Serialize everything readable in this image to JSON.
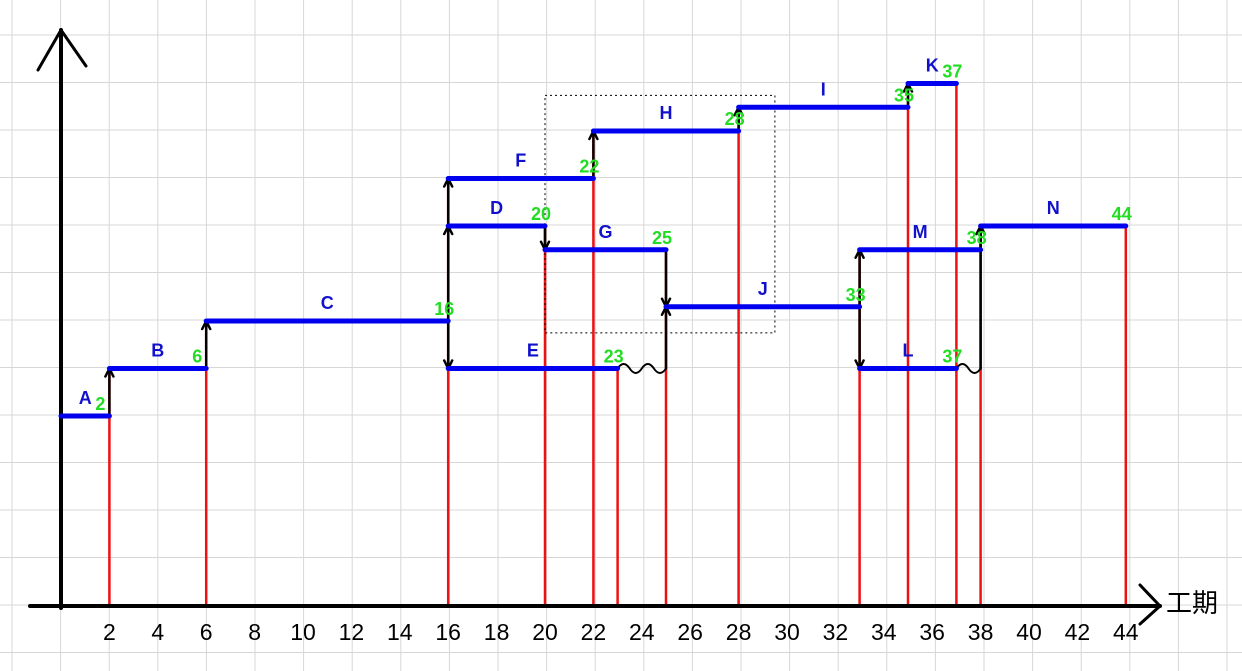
{
  "axis": {
    "x_title": "工期"
  },
  "ticks": [
    "2",
    "4",
    "6",
    "8",
    "10",
    "12",
    "14",
    "16",
    "18",
    "20",
    "22",
    "24",
    "26",
    "28",
    "30",
    "32",
    "34",
    "36",
    "38",
    "40",
    "42",
    "44"
  ],
  "tasks": [
    {
      "name": "A",
      "start": 0,
      "end": 2,
      "level": 1,
      "end_label": "2"
    },
    {
      "name": "B",
      "start": 2,
      "end": 6,
      "level": 2,
      "end_label": "6"
    },
    {
      "name": "C",
      "start": 6,
      "end": 16,
      "level": 3,
      "end_label": "16"
    },
    {
      "name": "D",
      "start": 16,
      "end": 20,
      "level": 5,
      "end_label": "20"
    },
    {
      "name": "E",
      "start": 16,
      "end": 23,
      "level": 2,
      "end_label": "23"
    },
    {
      "name": "F",
      "start": 16,
      "end": 22,
      "level": 6,
      "end_label": "22"
    },
    {
      "name": "G",
      "start": 20,
      "end": 25,
      "level": 4.5,
      "end_label": "25"
    },
    {
      "name": "H",
      "start": 22,
      "end": 28,
      "level": 7,
      "end_label": "28"
    },
    {
      "name": "I",
      "start": 28,
      "end": 35,
      "level": 7.5,
      "end_label": "35"
    },
    {
      "name": "J",
      "start": 25,
      "end": 33,
      "level": 3.3,
      "end_label": "33"
    },
    {
      "name": "K",
      "start": 35,
      "end": 37,
      "level": 8,
      "end_label": "37"
    },
    {
      "name": "L",
      "start": 33,
      "end": 37,
      "level": 2,
      "end_label": "37"
    },
    {
      "name": "M",
      "start": 33,
      "end": 38,
      "level": 4.5,
      "end_label": "38"
    },
    {
      "name": "N",
      "start": 38,
      "end": 44,
      "level": 5,
      "end_label": "44"
    }
  ],
  "milestones": [
    2,
    6,
    16,
    20,
    22,
    23,
    25,
    28,
    33,
    35,
    37,
    38,
    44
  ],
  "dependencies": [
    {
      "from": "A",
      "to": "B",
      "at": 2,
      "from_level": 1,
      "to_level": 2
    },
    {
      "from": "B",
      "to": "C",
      "at": 6,
      "from_level": 2,
      "to_level": 3
    },
    {
      "from": "C",
      "to": "D",
      "at": 16,
      "from_level": 3,
      "to_level": 5
    },
    {
      "from": "D",
      "to": "F",
      "at": 16,
      "from_level": 5,
      "to_level": 6
    },
    {
      "from": "C",
      "to": "E",
      "at": 16,
      "from_level": 3,
      "to_level": 2
    },
    {
      "from": "D",
      "to": "G",
      "at": 20,
      "from_level": 5,
      "to_level": 4.5
    },
    {
      "from": "F",
      "to": "H",
      "at": 22,
      "from_level": 6,
      "to_level": 7
    },
    {
      "from": "G",
      "to": "J",
      "at": 25,
      "from_level": 4.5,
      "to_level": 3.3
    },
    {
      "from": "E",
      "to": "J",
      "at": 25,
      "from_level": 2,
      "to_level": 3.3
    },
    {
      "from": "H",
      "to": "I",
      "at": 28,
      "from_level": 7,
      "to_level": 7.5
    },
    {
      "from": "J",
      "to": "M",
      "at": 33,
      "from_level": 3.3,
      "to_level": 4.5
    },
    {
      "from": "J",
      "to": "L",
      "at": 33,
      "from_level": 3.3,
      "to_level": 2
    },
    {
      "from": "I",
      "to": "K",
      "at": 35,
      "from_level": 7.5,
      "to_level": 8
    },
    {
      "from": "M",
      "to": "N",
      "at": 38,
      "from_level": 4.5,
      "to_level": 5
    },
    {
      "from": "L",
      "to": "N",
      "at": 38,
      "from_level": 2,
      "to_level": 5
    }
  ],
  "float_links": [
    {
      "after": "E",
      "from": 23,
      "to": 25,
      "level": 2
    },
    {
      "after": "L",
      "from": 37,
      "to": 38,
      "level": 2
    }
  ],
  "highlight_box": {
    "from": 20,
    "to": 29.5,
    "level_top": 7.75,
    "level_bottom": 2.75
  }
}
